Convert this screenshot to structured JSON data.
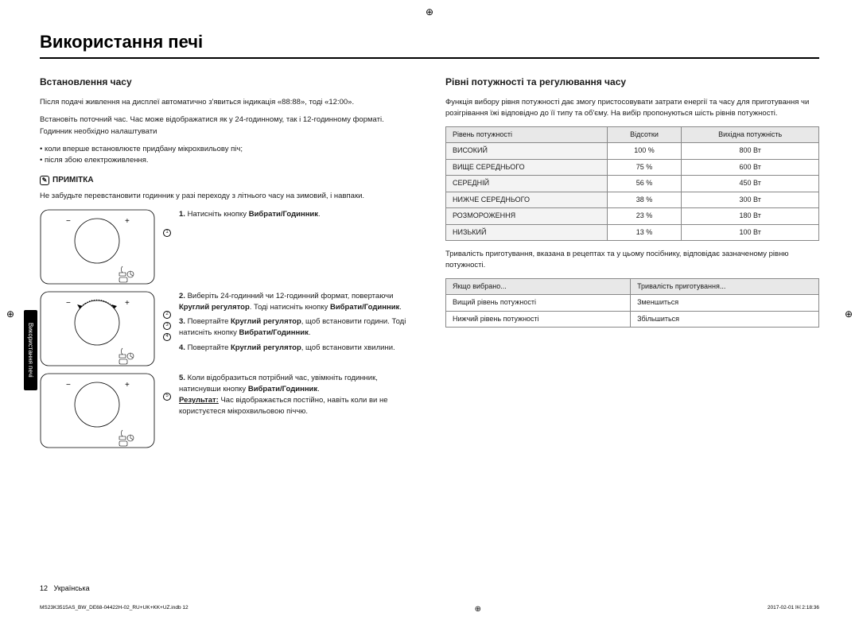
{
  "cropMark": "⊕",
  "mainTitle": "Використання печі",
  "sidebarLabel": "Використання печі",
  "left": {
    "sectionTitle": "Встановлення часу",
    "intro1": "Після подачі живлення на дисплеї автоматично з'явиться індикація «88:88», тоді «12:00».",
    "intro2": "Встановіть поточний час. Час може відображатися як у 24-годинному, так і 12-годинному форматі. Годинник необхідно налаштувати",
    "bullets": [
      "коли вперше встановлюєте придбану мікрохвильову піч;",
      "після збою електроживлення."
    ],
    "noteLabel": "ПРИМІТКА",
    "noteText": "Не забудьте перевстановити годинник у разі переходу з літнього часу на зимовий, і навпаки.",
    "steps": {
      "s1": {
        "prefix": "1.",
        "t1": "Натисніть кнопку ",
        "b1": "Вибрати/Годинник",
        "t2": "."
      },
      "s2": {
        "prefix": "2.",
        "t1": "Виберіть 24-годинний чи 12-годинний формат, повертаючи ",
        "b1": "Круглий регулятор",
        "t2": ". Тоді натисніть кнопку ",
        "b2": "Вибрати/Годинник",
        "t3": "."
      },
      "s3": {
        "prefix": "3.",
        "t1": "Повертайте ",
        "b1": "Круглий регулятор",
        "t2": ", щоб встановити години. Тоді натисніть кнопку ",
        "b2": "Вибрати/Годинник",
        "t3": "."
      },
      "s4": {
        "prefix": "4.",
        "t1": "Повертайте ",
        "b1": "Круглий регулятор",
        "t2": ", щоб встановити хвилини."
      },
      "s5": {
        "prefix": "5.",
        "t1": "Коли відобразиться потрібний час, увімкніть годинник, натиснувши кнопку ",
        "b1": "Вибрати/Годинник",
        "t2": ".",
        "resLabel": "Результат:",
        "resText": " Час відображається постійно, навіть коли ви не користуєтеся мікрохвильовою піччю."
      }
    }
  },
  "right": {
    "sectionTitle": "Рівні потужності та регулювання часу",
    "intro": "Функція вибору рівня потужності дає змогу пристосовувати затрати енергії та часу для приготування чи розігрівання їжі відповідно до її типу та об'єму. На вибір пропонуються шість рівнів потужності.",
    "table1": {
      "headers": [
        "Рівень потужності",
        "Відсотки",
        "Вихідна потужність"
      ],
      "rows": [
        [
          "ВИСОКИЙ",
          "100 %",
          "800 Вт"
        ],
        [
          "ВИЩЕ СЕРЕДНЬОГО",
          "75 %",
          "600 Вт"
        ],
        [
          "СЕРЕДНІЙ",
          "56 %",
          "450 Вт"
        ],
        [
          "НИЖЧЕ СЕРЕДНЬОГО",
          "38 %",
          "300 Вт"
        ],
        [
          "РОЗМОРОЖЕННЯ",
          "23 %",
          "180 Вт"
        ],
        [
          "НИЗЬКИЙ",
          "13 %",
          "100 Вт"
        ]
      ]
    },
    "midText": "Тривалість приготування, вказана в рецептах та у цьому посібнику, відповідає зазначеному рівню потужності.",
    "table2": {
      "headers": [
        "Якщо вибрано...",
        "Тривалість приготування..."
      ],
      "rows": [
        [
          "Вищий рівень потужності",
          "Зменшиться"
        ],
        [
          "Нижчий рівень потужності",
          "Збільшиться"
        ]
      ]
    }
  },
  "footer": {
    "pageNum": "12",
    "lang": "Українська"
  },
  "meta": {
    "file": "MS23K3515AS_BW_DE68-04422H-02_RU+UK+KK+UZ.indb   12",
    "date": "2017-02-01   ￼ 2:18:36"
  }
}
